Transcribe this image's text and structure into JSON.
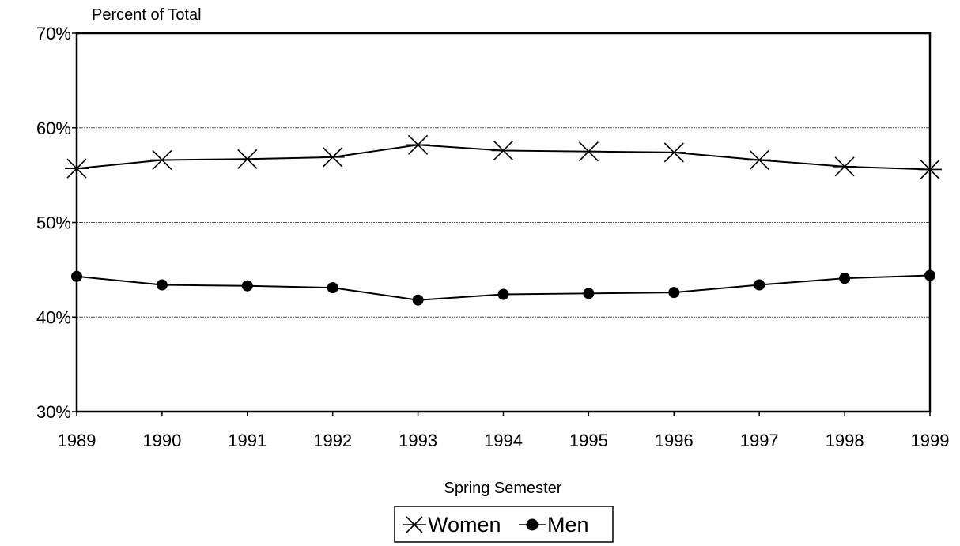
{
  "chart_data": {
    "type": "line",
    "ylabel": "Percent of Total",
    "xlabel": "Spring Semester",
    "categories": [
      "1989",
      "1990",
      "1991",
      "1992",
      "1993",
      "1994",
      "1995",
      "1996",
      "1997",
      "1998",
      "1999"
    ],
    "y_ticks": [
      "70%",
      "60%",
      "50%",
      "40%",
      "30%"
    ],
    "ylim": [
      30,
      70
    ],
    "grid": true,
    "legend_position": "bottom",
    "series": [
      {
        "name": "Women",
        "marker": "asterisk",
        "values": [
          55.7,
          56.6,
          56.7,
          56.9,
          58.2,
          57.6,
          57.5,
          57.4,
          56.6,
          55.9,
          55.6
        ]
      },
      {
        "name": "Men",
        "marker": "filled-circle",
        "values": [
          44.3,
          43.4,
          43.3,
          43.1,
          41.8,
          42.4,
          42.5,
          42.6,
          43.4,
          44.1,
          44.4
        ]
      }
    ],
    "colors": {
      "line": "#000000",
      "grid": "#555555",
      "background": "#ffffff"
    }
  }
}
